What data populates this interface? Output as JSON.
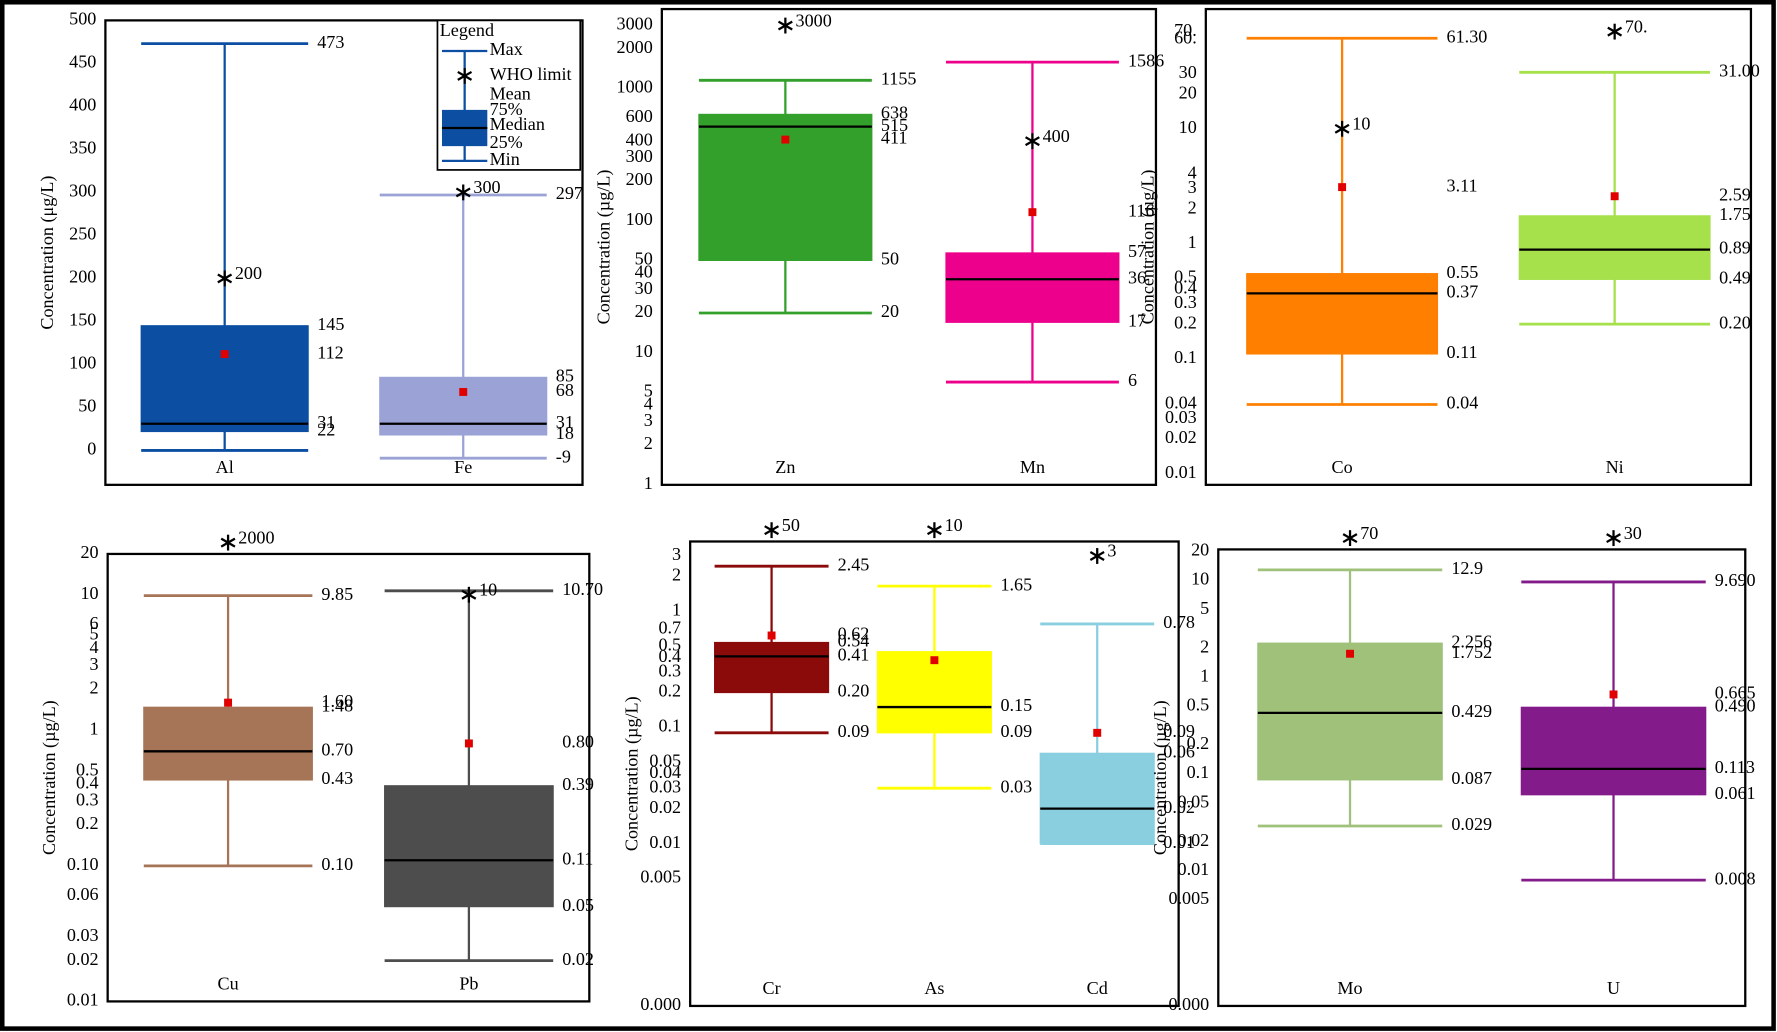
{
  "chart_data": [
    {
      "type": "box",
      "y_label": "Concentration (μg/L)",
      "log": false,
      "ylim": [
        -40,
        500
      ],
      "yticks": [
        0,
        50,
        100,
        150,
        200,
        250,
        300,
        350,
        400,
        450,
        500
      ],
      "legend": {
        "title": "Legend",
        "items": [
          "Max",
          "WHO limit",
          "Mean",
          "75%",
          "Median",
          "25%",
          "Min"
        ]
      },
      "series": [
        {
          "name": "Al",
          "color": "#0b4ea2",
          "values": [
            0,
            22,
            31,
            145,
            473,
            112
          ],
          "value_labels": [
            null,
            "22",
            "31",
            "145",
            "473",
            "112"
          ],
          "who_limit": 200
        },
        {
          "name": "Fe",
          "color": "#9ba3d6",
          "values": [
            -9,
            18,
            31,
            85,
            297,
            68
          ],
          "value_labels": [
            "-9",
            "18",
            "31",
            "85",
            "297",
            "68"
          ],
          "who_limit": 300
        }
      ]
    },
    {
      "type": "box",
      "y_label": "Concentration (µg/L)",
      "log": true,
      "ylim": [
        1,
        4000
      ],
      "yticks": [
        1,
        2,
        3,
        4,
        5,
        10,
        20,
        30,
        40,
        50,
        100,
        200,
        300,
        400,
        600,
        1000,
        2000,
        3000
      ],
      "series": [
        {
          "name": "Zn",
          "color": "#33a02c",
          "values": [
            20,
            50,
            515,
            638,
            1155,
            411
          ],
          "value_labels": [
            "20",
            "50",
            "515",
            "638",
            "1155",
            "411"
          ],
          "who_limit": 3000
        },
        {
          "name": "Mn",
          "color": "#ec008c",
          "values": [
            6,
            17,
            36,
            57,
            1586,
            116
          ],
          "value_labels": [
            "6",
            "17",
            "36",
            "57",
            "1586",
            "116"
          ],
          "who_limit": 400
        }
      ]
    },
    {
      "type": "box",
      "y_label": "Concentration (µg/L)",
      "log": true,
      "ylim": [
        0.008,
        110
      ],
      "yticks": [
        0.01,
        0.02,
        0.03,
        0.04,
        0.1,
        0.2,
        0.3,
        0.4,
        0.5,
        1,
        2,
        3,
        4,
        10,
        20,
        30,
        {
          "value": 60,
          "label": "60."
        },
        {
          "value": 70,
          "label": "70."
        }
      ],
      "series": [
        {
          "name": "Co",
          "color": "#ff7f00",
          "values": [
            0.04,
            0.11,
            0.37,
            0.55,
            61.3,
            3.11
          ],
          "value_labels": [
            "0.04",
            "0.11",
            "0.37",
            "0.55",
            "61.30",
            "3.11"
          ],
          "who_limit": 10
        },
        {
          "name": "Ni",
          "color": "#a6e04a",
          "values": [
            0.2,
            0.49,
            0.89,
            1.75,
            31,
            2.59
          ],
          "value_labels": [
            "0.20",
            "0.49",
            "0.89",
            "1.75",
            "31.00",
            "2.59"
          ],
          "who_limit": {
            "value": 70,
            "label": "70."
          }
        }
      ]
    },
    {
      "type": "box",
      "y_label": "Concentration (µg/L)",
      "log": true,
      "ylim": [
        0.01,
        20
      ],
      "yticks": [
        0.01,
        0.02,
        0.03,
        0.06,
        {
          "value": 0.1,
          "label": "0.10"
        },
        0.2,
        0.3,
        0.4,
        0.5,
        1,
        2,
        3,
        4,
        5,
        6,
        10,
        20
      ],
      "series": [
        {
          "name": "Cu",
          "color": "#a67456",
          "values": [
            0.1,
            0.43,
            0.7,
            1.48,
            9.85,
            1.6
          ],
          "value_labels": [
            "0.10",
            "0.43",
            "0.70",
            "1.48",
            "9.85",
            "1.60"
          ],
          "who_limit": 2000
        },
        {
          "name": "Pb",
          "color": "#4d4d4d",
          "values": [
            0.02,
            0.05,
            0.11,
            0.39,
            10.7,
            0.8
          ],
          "value_labels": [
            "0.02",
            "0.05",
            "0.11",
            "0.39",
            "10.70",
            "0.80"
          ],
          "who_limit": 10
        }
      ]
    },
    {
      "type": "box",
      "y_label": "Concentration (µg/L)",
      "log": true,
      "ylim": [
        0.0004,
        4
      ],
      "yticks": [
        {
          "value": 0.0004,
          "label": "0.000"
        },
        0.005,
        0.01,
        0.02,
        0.03,
        0.04,
        0.05,
        0.1,
        0.2,
        0.3,
        0.4,
        0.5,
        0.7,
        1,
        2,
        3
      ],
      "series": [
        {
          "name": "Cr",
          "color": "#8b0a0a",
          "values": [
            0.09,
            0.2,
            0.41,
            0.54,
            2.45,
            0.62
          ],
          "value_labels": [
            "0.09",
            "0.20",
            "0.41",
            "0.54",
            "2.45",
            "0.62"
          ],
          "who_limit": 50
        },
        {
          "name": "As",
          "color": "#ffff00",
          "values": [
            0.03,
            0.09,
            0.15,
            0.45,
            1.65,
            0.38
          ],
          "value_labels": [
            "0.03",
            "0.09",
            "0.15",
            null,
            "1.65",
            null
          ],
          "who_limit": 10
        },
        {
          "name": "Cd",
          "color": "#89cfe0",
          "values": [
            0.01,
            0.01,
            0.02,
            0.06,
            0.78,
            0.09
          ],
          "value_labels": [
            null,
            "0.01",
            "0.02",
            "0.06",
            "0.78",
            "0.09"
          ],
          "who_limit": 3
        }
      ]
    },
    {
      "type": "box",
      "y_label": "Concentration (µg/L)",
      "log": true,
      "ylim": [
        0.0004,
        21
      ],
      "yticks": [
        {
          "value": 0.0004,
          "label": "0.000"
        },
        0.005,
        0.01,
        0.02,
        0.05,
        0.1,
        0.2,
        0.5,
        1,
        2,
        5,
        10,
        20
      ],
      "series": [
        {
          "name": "Mo",
          "color": "#9fc17a",
          "values": [
            0.029,
            0.087,
            0.429,
            2.256,
            12.9,
            1.752
          ],
          "value_labels": [
            "0.029",
            "0.087",
            "0.429",
            "2.256",
            "12.9",
            "1.752"
          ],
          "who_limit": 70
        },
        {
          "name": "U",
          "color": "#841b8a",
          "values": [
            0.008,
            0.061,
            0.113,
            0.49,
            9.69,
            0.665
          ],
          "value_labels": [
            "0.008",
            "0.061",
            "0.113",
            "0.490",
            "9.690",
            "0.665"
          ],
          "who_limit": 30
        }
      ]
    }
  ]
}
